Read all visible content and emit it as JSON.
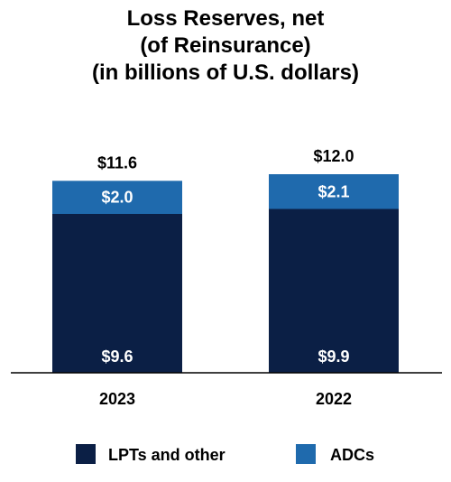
{
  "chart_data": {
    "type": "bar",
    "stacked": true,
    "title": [
      "Loss Reserves, net",
      "(of Reinsurance)",
      "(in billions of U.S. dollars)"
    ],
    "categories": [
      "2023",
      "2022"
    ],
    "series": [
      {
        "name": "LPTs and other",
        "color": "#0b1f45",
        "values": [
          9.6,
          9.9
        ],
        "labels": [
          "$9.6",
          "$9.9"
        ]
      },
      {
        "name": "ADCs",
        "color": "#1f6aad",
        "values": [
          2.0,
          2.1
        ],
        "labels": [
          "$2.0",
          "$2.1"
        ]
      }
    ],
    "totals": [
      11.6,
      12.0
    ],
    "total_labels": [
      "$11.6",
      "$12.0"
    ],
    "ylim": [
      0,
      12.0
    ],
    "grid": false,
    "legend_position": "bottom",
    "xlabel": "",
    "ylabel": ""
  }
}
